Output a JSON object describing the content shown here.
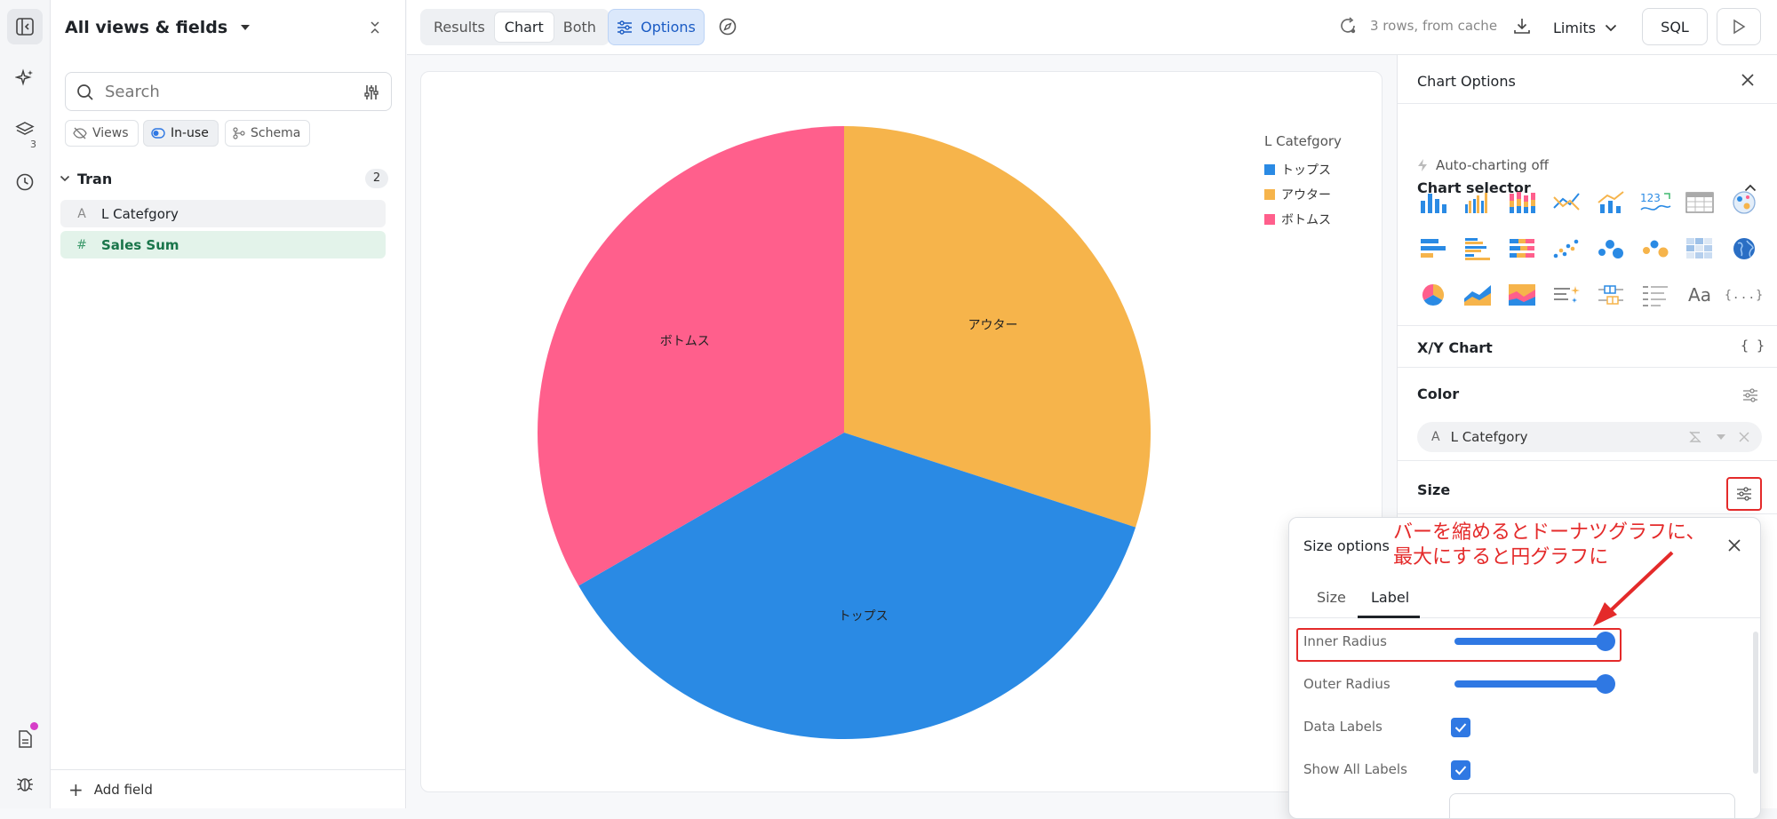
{
  "rail": {
    "layers_badge": "3"
  },
  "field_panel": {
    "title": "All views & fields",
    "search_placeholder": "Search",
    "chips": {
      "views": "Views",
      "in_use": "In-use",
      "schema": "Schema"
    },
    "group": {
      "name": "Tran",
      "count": "2"
    },
    "fields": [
      {
        "type": "A",
        "name": "L Catefgory"
      },
      {
        "type": "#",
        "name": "Sales Sum"
      }
    ],
    "add_field": "Add field"
  },
  "toolbar": {
    "view_tabs": [
      "Results",
      "Chart",
      "Both"
    ],
    "active_tab": "Chart",
    "options_label": "Options",
    "cache_status": "3 rows, from cache",
    "limits_label": "Limits",
    "sql_label": "SQL"
  },
  "chart_data": {
    "type": "pie",
    "legend_title": "L Catefgory",
    "legend_position": "top-right",
    "categories": [
      "トップス",
      "アウター",
      "ボトムス"
    ],
    "values": [
      0.3667,
      0.3,
      0.3333
    ],
    "colors": [
      "#2a8ae4",
      "#f6b44b",
      "#ff5f8c"
    ],
    "data_labels": true,
    "start_angle_deg": 0
  },
  "options_panel": {
    "title": "Chart Options",
    "chart_selector": {
      "title": "Chart selector",
      "autocharting": "Auto-charting off",
      "text_icon_label": "Aa",
      "json_icon_label": "{...}",
      "kpi_icon_label": "123"
    },
    "xy_chart": {
      "title": "X/Y Chart",
      "json_label": "{ }"
    },
    "color": {
      "title": "Color",
      "field_type": "A",
      "field": "L Catefgory"
    },
    "size": {
      "title": "Size"
    }
  },
  "size_popover": {
    "title": "Size options",
    "tabs": [
      "Size",
      "Label"
    ],
    "active_tab": "Label",
    "inner_radius": {
      "label": "Inner Radius",
      "value": 1.0
    },
    "outer_radius": {
      "label": "Outer Radius",
      "value": 1.0
    },
    "data_labels": {
      "label": "Data Labels",
      "checked": true
    },
    "show_all_labels": {
      "label": "Show All Labels",
      "checked": true
    }
  },
  "annotation": {
    "line1": "バーを縮めるとドーナツグラフに、",
    "line2": "最大にすると円グラフに",
    "color": "#e42a2a"
  }
}
